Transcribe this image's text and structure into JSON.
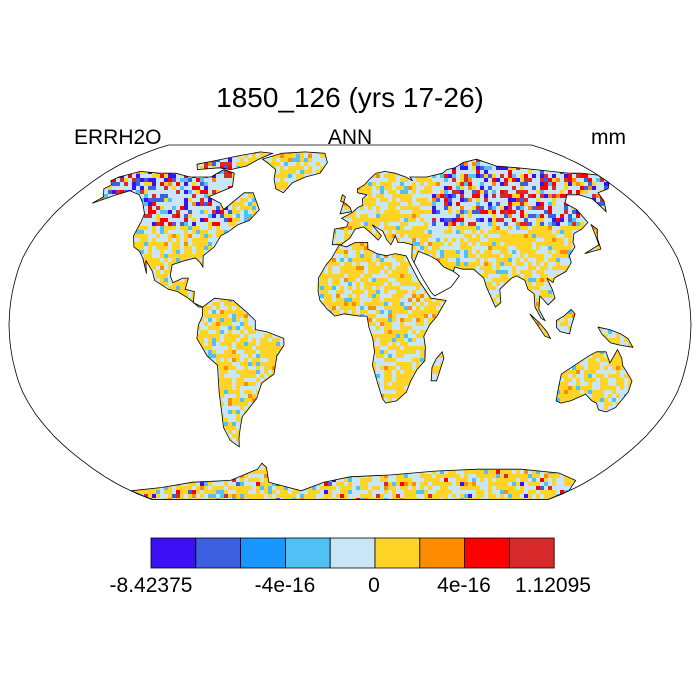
{
  "title": "1850_126 (yrs 17-26)",
  "left_string": "ERRH2O",
  "center_string": "ANN",
  "right_string": "mm",
  "colorbar": {
    "colors": [
      "#3c10f5",
      "#3c60e0",
      "#1a96ff",
      "#50c0f5",
      "#c8e6f5",
      "#ffd427",
      "#ff8c00",
      "#ff0000",
      "#d82a2a"
    ],
    "labels": [
      "-8.42375",
      "-4e-16",
      "0",
      "4e-16",
      "1.12095"
    ]
  },
  "map": {
    "projection": "robinson",
    "ocean_color": "#ffffff",
    "land_colors": [
      "#ffd427",
      "#c8e6f5",
      "#50c0f5",
      "#ff8c00"
    ],
    "high_latitude_colors": [
      "#3c10f5",
      "#3c60e0",
      "#ff0000",
      "#d82a2a",
      "#ffd427",
      "#c8e6f5"
    ]
  }
}
